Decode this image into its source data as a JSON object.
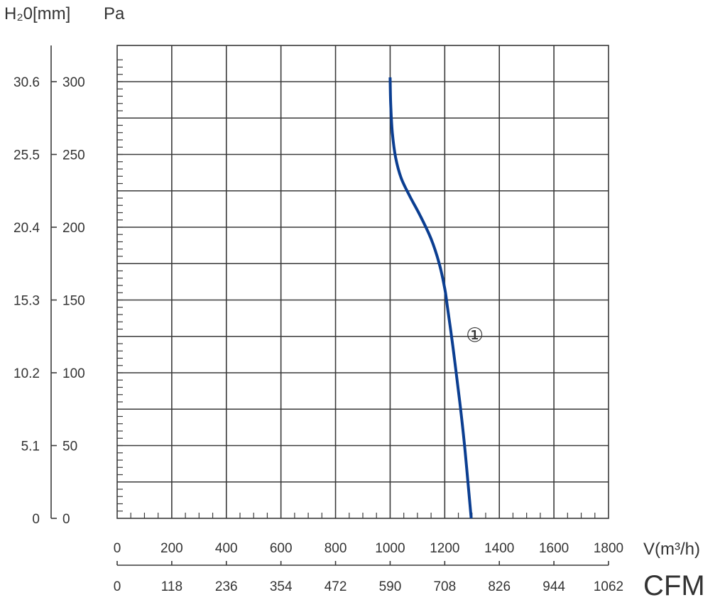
{
  "chart_data": {
    "type": "line",
    "title": "",
    "xlabel": "V(m³/h)",
    "xlabel_secondary": "CFM",
    "ylabel": "Pa",
    "ylabel_secondary": "H₂0[mm]",
    "xlim": [
      0,
      1800
    ],
    "ylim": [
      0,
      325
    ],
    "x_ticks": [
      "0",
      "200",
      "400",
      "600",
      "800",
      "1000",
      "1200",
      "1400",
      "1600",
      "1800"
    ],
    "x_ticks_secondary": [
      "0",
      "118",
      "236",
      "354",
      "472",
      "590",
      "708",
      "826",
      "944",
      "1062"
    ],
    "y_ticks": [
      "0",
      "50",
      "100",
      "150",
      "200",
      "250",
      "300"
    ],
    "y_ticks_secondary": [
      "0",
      "5.1",
      "10.2",
      "15.3",
      "20.4",
      "25.5",
      "30.6"
    ],
    "grid": true,
    "line_color": "#0b3e91",
    "series": [
      {
        "name": "",
        "marker_label": "①",
        "x": [
          1000,
          1002,
          1008,
          1020,
          1040,
          1070,
          1110,
          1150,
          1180,
          1200,
          1210,
          1225,
          1240,
          1255,
          1270,
          1285,
          1297
        ],
        "y": [
          303,
          285,
          265,
          248,
          234,
          222,
          208,
          192,
          175,
          158,
          145,
          125,
          103,
          80,
          55,
          25,
          0
        ]
      }
    ]
  }
}
